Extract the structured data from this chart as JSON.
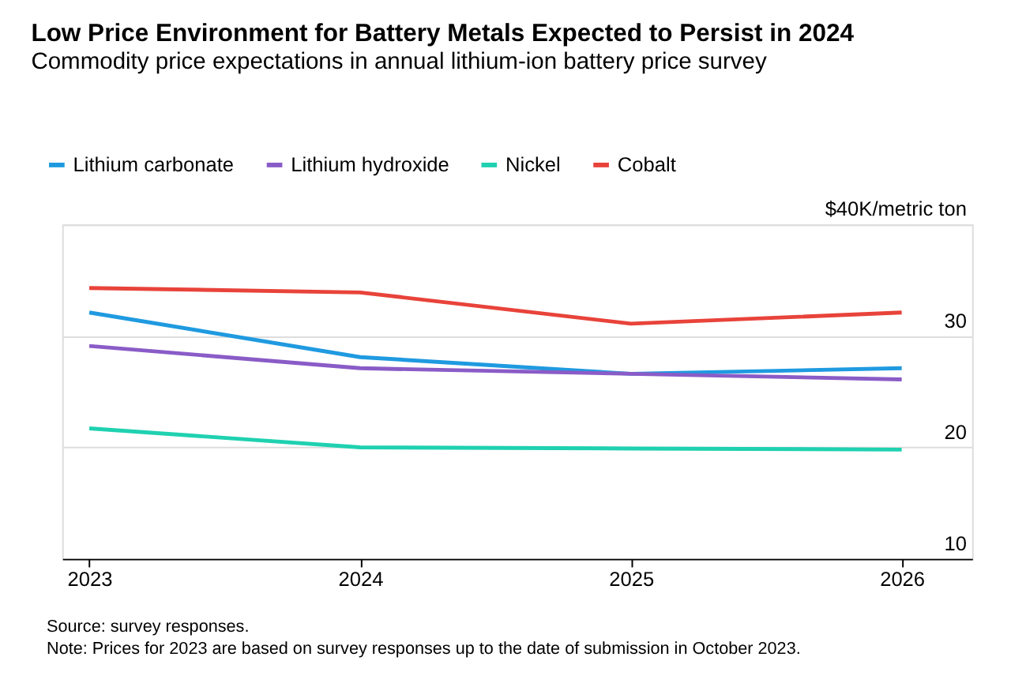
{
  "chart_data": {
    "type": "line",
    "title": "Low Price Environment for Battery Metals Expected to Persist in 2024",
    "subtitle": "Commodity price expectations in annual lithium-ion battery price survey",
    "x": [
      2023,
      2024,
      2025,
      2026
    ],
    "series": [
      {
        "name": "Lithium carbonate",
        "color": "#1f9ae0",
        "values": [
          32.1,
          28.1,
          26.6,
          27.1
        ]
      },
      {
        "name": "Lithium hydroxide",
        "color": "#8a5cc7",
        "values": [
          29.1,
          27.1,
          26.6,
          26.1
        ]
      },
      {
        "name": "Nickel",
        "color": "#1fd1b0",
        "values": [
          21.7,
          20.0,
          19.9,
          19.8
        ]
      },
      {
        "name": "Cobalt",
        "color": "#e8433a",
        "values": [
          34.3,
          33.9,
          31.1,
          32.1
        ]
      }
    ],
    "xlim": [
      2022.9,
      2026.26
    ],
    "xticks": [
      2023,
      2024,
      2025,
      2026
    ],
    "ylim": [
      10,
      40
    ],
    "yticks": [
      10,
      20,
      30,
      {
        "value": 40,
        "label": "$40K/metric ton"
      }
    ],
    "grid": "y",
    "legend": "top left",
    "marker": "none",
    "line_style": "solid",
    "annotations": [
      "Source: survey responses.",
      "Note: Prices for 2023 are based on survey responses up to the date of submission in October 2023."
    ]
  }
}
